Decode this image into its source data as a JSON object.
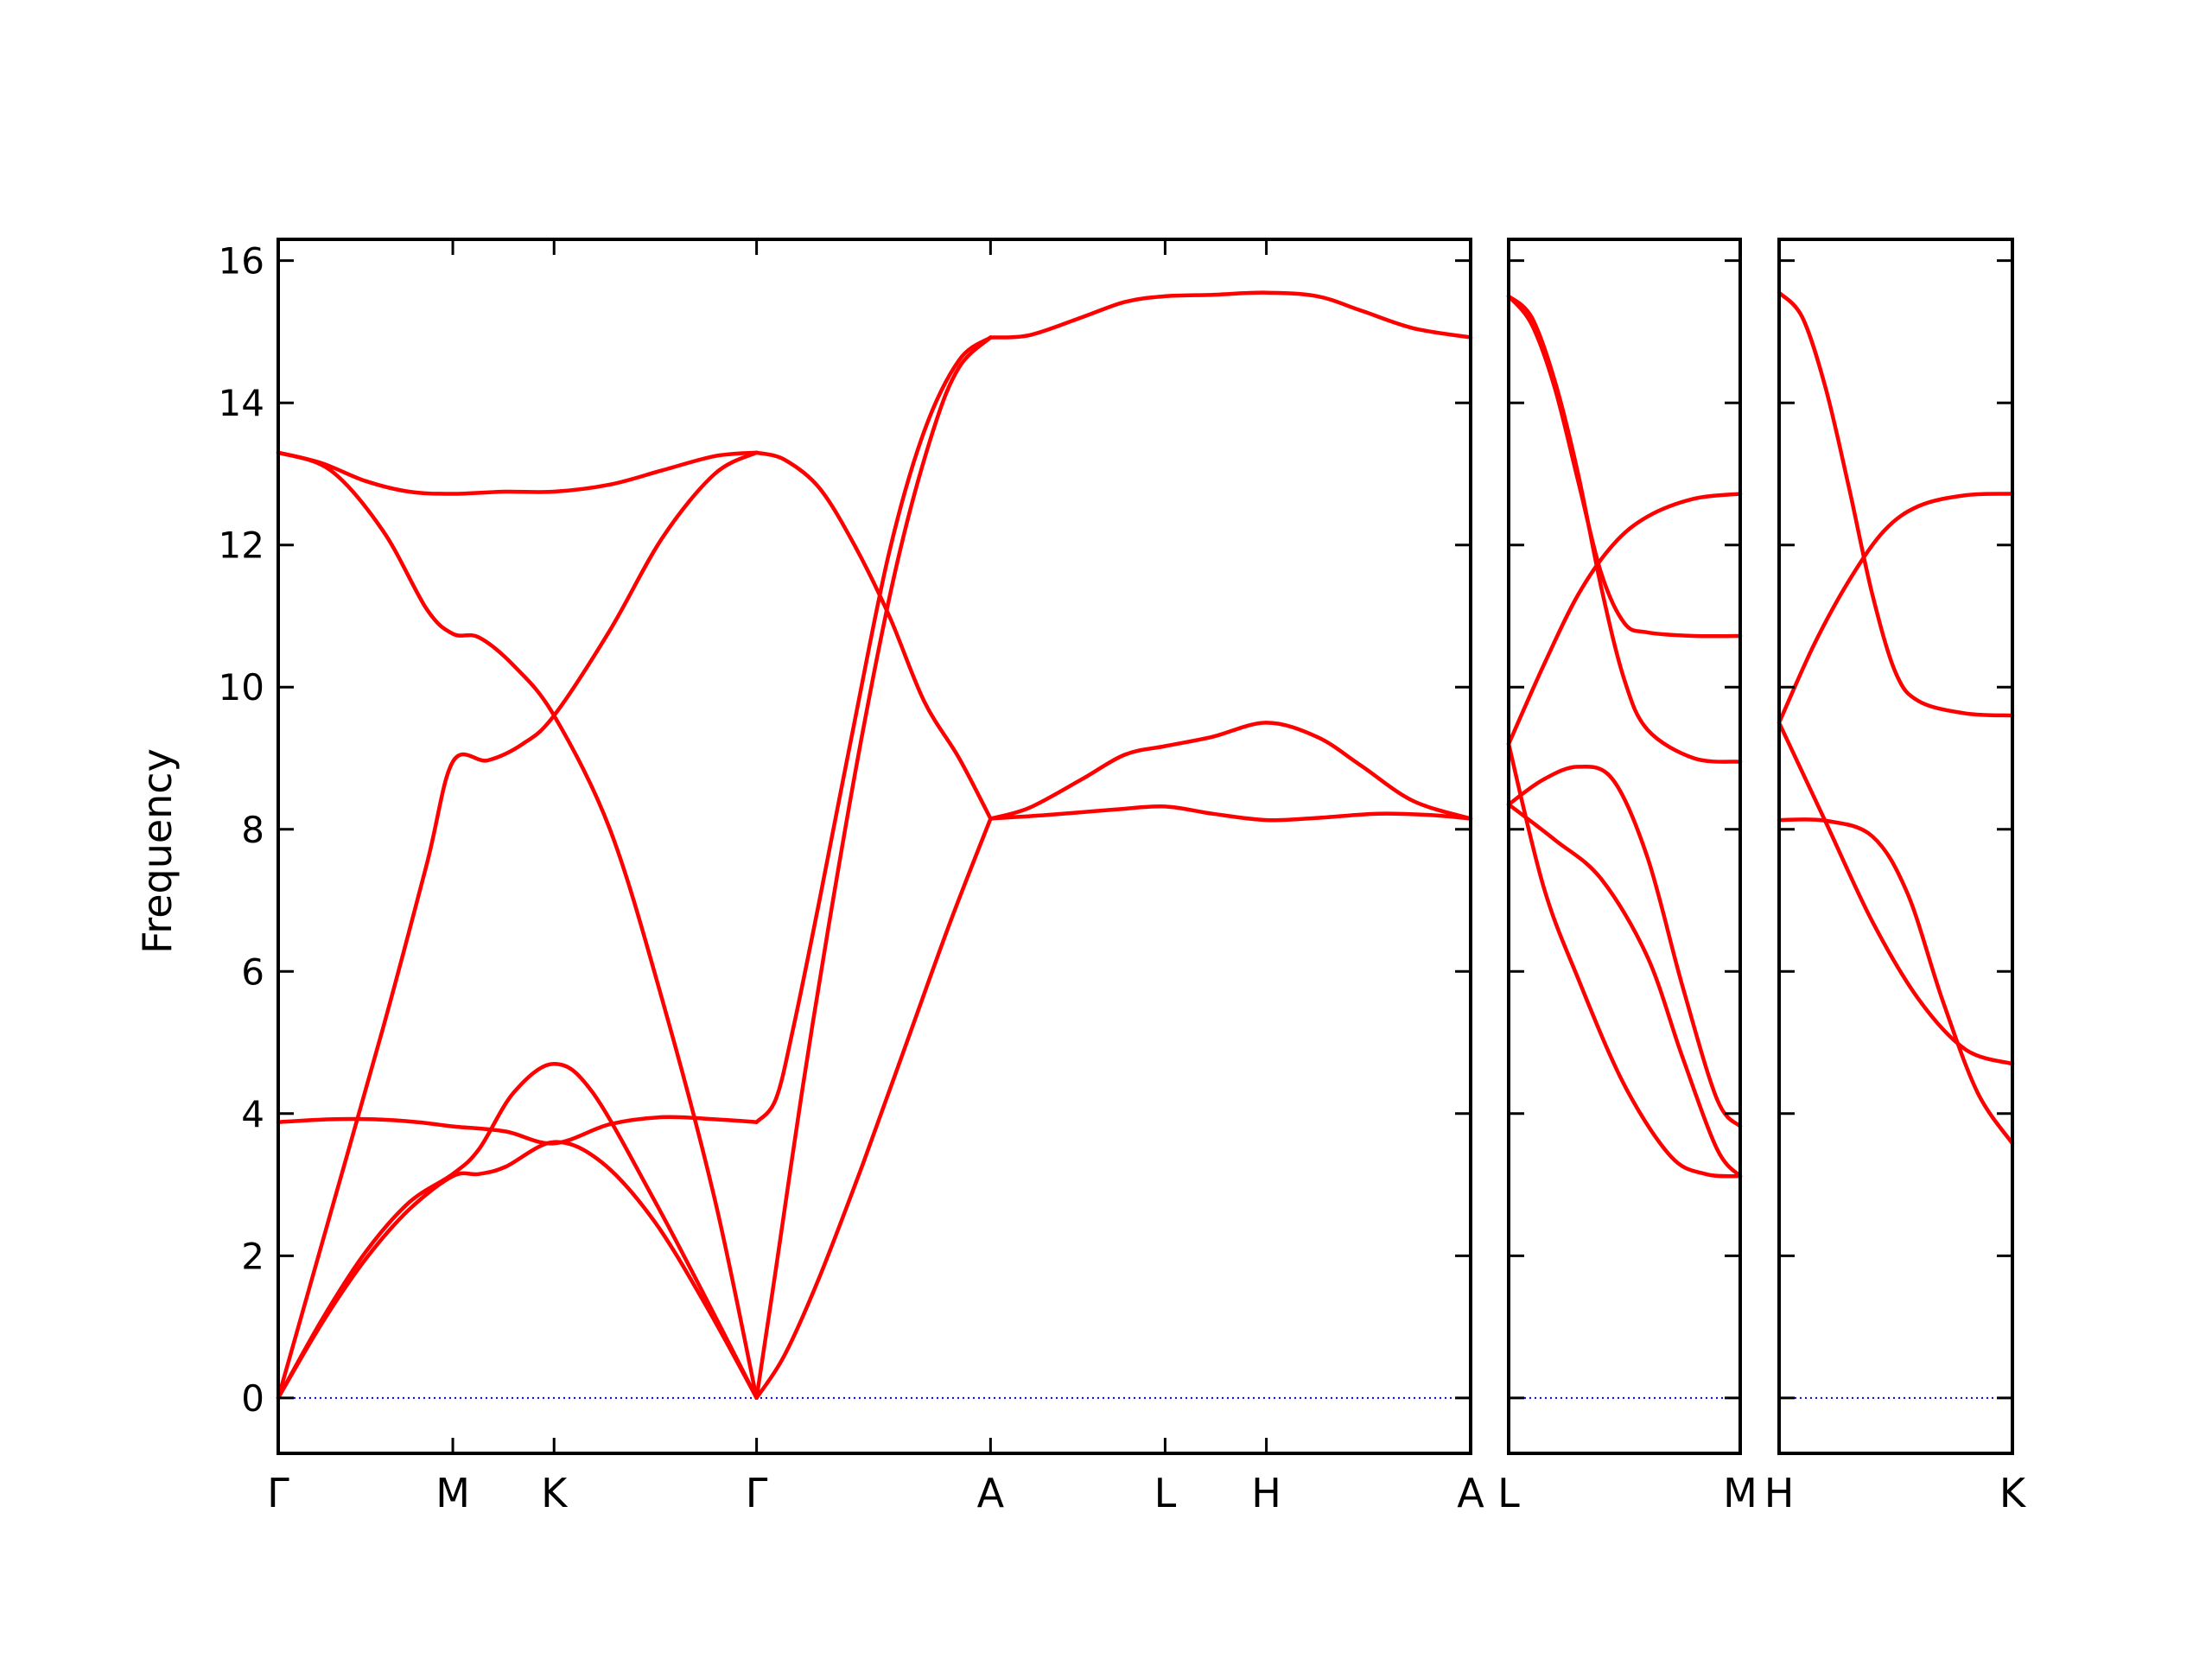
{
  "chart_data": {
    "type": "line",
    "ylabel": "Frequency",
    "ylim": [
      -0.78,
      16.3
    ],
    "yticks": [
      "0",
      "2",
      "4",
      "6",
      "8",
      "10",
      "12",
      "14",
      "16"
    ],
    "reference_line": {
      "y": 0,
      "color": "#0000ff",
      "style": "dotted"
    },
    "band_color": "#ff0000",
    "panels": [
      {
        "xlim": [
          0,
          6.83
        ],
        "ticks": [
          {
            "x": 0,
            "label": "Γ"
          },
          {
            "x": 1.0,
            "label": "M"
          },
          {
            "x": 1.58,
            "label": "K"
          },
          {
            "x": 2.74,
            "label": "Γ"
          },
          {
            "x": 4.08,
            "label": "A"
          },
          {
            "x": 5.08,
            "label": "L"
          },
          {
            "x": 5.66,
            "label": "H"
          },
          {
            "x": 6.83,
            "label": "A"
          }
        ],
        "bands": [
          {
            "points": [
              [
                0,
                0
              ],
              [
                0.25,
                1.05
              ],
              [
                0.5,
                1.95
              ],
              [
                0.75,
                2.65
              ],
              [
                1.0,
                3.12
              ],
              [
                1.15,
                3.15
              ],
              [
                1.3,
                3.25
              ],
              [
                1.58,
                3.6
              ],
              [
                1.85,
                3.32
              ],
              [
                2.15,
                2.5
              ],
              [
                2.45,
                1.3
              ],
              [
                2.74,
                0
              ]
            ]
          },
          {
            "points": [
              [
                0,
                0
              ],
              [
                0.25,
                1.1
              ],
              [
                0.5,
                2.05
              ],
              [
                0.75,
                2.75
              ],
              [
                1.0,
                3.15
              ],
              [
                1.15,
                3.5
              ],
              [
                1.35,
                4.3
              ],
              [
                1.58,
                4.7
              ],
              [
                1.8,
                4.3
              ],
              [
                2.15,
                2.8
              ],
              [
                2.45,
                1.4
              ],
              [
                2.74,
                0
              ]
            ]
          },
          {
            "points": [
              [
                0,
                0
              ],
              [
                0.3,
                2.6
              ],
              [
                0.6,
                5.2
              ],
              [
                0.85,
                7.5
              ],
              [
                1.0,
                8.95
              ],
              [
                1.2,
                8.97
              ],
              [
                1.4,
                9.2
              ],
              [
                1.58,
                9.6
              ],
              [
                1.9,
                10.8
              ],
              [
                2.2,
                12.1
              ],
              [
                2.5,
                13.0
              ],
              [
                2.74,
                13.3
              ]
            ]
          },
          {
            "points": [
              [
                0,
                13.3
              ],
              [
                0.25,
                13.15
              ],
              [
                0.5,
                12.9
              ],
              [
                0.75,
                12.75
              ],
              [
                1.0,
                12.72
              ],
              [
                1.3,
                12.75
              ],
              [
                1.58,
                12.75
              ],
              [
                1.9,
                12.85
              ],
              [
                2.2,
                13.05
              ],
              [
                2.5,
                13.25
              ],
              [
                2.74,
                13.3
              ]
            ]
          },
          {
            "points": [
              [
                0,
                13.3
              ],
              [
                0.3,
                13.05
              ],
              [
                0.6,
                12.2
              ],
              [
                0.85,
                11.1
              ],
              [
                1.0,
                10.75
              ],
              [
                1.15,
                10.7
              ],
              [
                1.35,
                10.3
              ],
              [
                1.58,
                9.6
              ],
              [
                1.9,
                8.0
              ],
              [
                2.2,
                5.6
              ],
              [
                2.5,
                2.8
              ],
              [
                2.74,
                0
              ]
            ]
          },
          {
            "points": [
              [
                0,
                3.88
              ],
              [
                0.3,
                3.92
              ],
              [
                0.55,
                3.92
              ],
              [
                0.8,
                3.88
              ],
              [
                1.0,
                3.82
              ],
              [
                1.3,
                3.75
              ],
              [
                1.58,
                3.58
              ],
              [
                1.9,
                3.85
              ],
              [
                2.2,
                3.95
              ],
              [
                2.5,
                3.92
              ],
              [
                2.74,
                3.88
              ]
            ]
          },
          {
            "points": [
              [
                2.74,
                0
              ],
              [
                2.9,
                0.6
              ],
              [
                3.1,
                1.7
              ],
              [
                3.35,
                3.3
              ],
              [
                3.6,
                5.0
              ],
              [
                3.85,
                6.7
              ],
              [
                4.08,
                8.15
              ]
            ]
          },
          {
            "points": [
              [
                2.74,
                3.88
              ],
              [
                2.85,
                4.2
              ],
              [
                2.95,
                5.2
              ],
              [
                3.1,
                7.0
              ],
              [
                3.3,
                9.5
              ],
              [
                3.5,
                11.9
              ],
              [
                3.7,
                13.6
              ],
              [
                3.9,
                14.6
              ],
              [
                4.08,
                14.92
              ]
            ]
          },
          {
            "points": [
              [
                2.74,
                0
              ],
              [
                2.85,
                1.8
              ],
              [
                3.0,
                4.3
              ],
              [
                3.15,
                6.6
              ],
              [
                3.35,
                9.4
              ],
              [
                3.55,
                11.8
              ],
              [
                3.75,
                13.6
              ],
              [
                3.9,
                14.5
              ],
              [
                4.08,
                14.92
              ]
            ]
          },
          {
            "points": [
              [
                2.74,
                13.3
              ],
              [
                2.9,
                13.2
              ],
              [
                3.1,
                12.8
              ],
              [
                3.3,
                12.0
              ],
              [
                3.5,
                11.0
              ],
              [
                3.7,
                9.8
              ],
              [
                3.9,
                9.0
              ],
              [
                4.08,
                8.15
              ]
            ]
          },
          {
            "points": [
              [
                4.08,
                14.92
              ],
              [
                4.3,
                14.95
              ],
              [
                4.6,
                15.2
              ],
              [
                4.85,
                15.42
              ],
              [
                5.08,
                15.5
              ],
              [
                5.35,
                15.52
              ],
              [
                5.66,
                15.55
              ],
              [
                5.95,
                15.5
              ],
              [
                6.2,
                15.3
              ],
              [
                6.5,
                15.05
              ],
              [
                6.83,
                14.92
              ]
            ]
          },
          {
            "points": [
              [
                4.08,
                8.15
              ],
              [
                4.3,
                8.3
              ],
              [
                4.6,
                8.7
              ],
              [
                4.85,
                9.05
              ],
              [
                5.08,
                9.17
              ],
              [
                5.35,
                9.3
              ],
              [
                5.66,
                9.5
              ],
              [
                5.95,
                9.3
              ],
              [
                6.2,
                8.9
              ],
              [
                6.5,
                8.4
              ],
              [
                6.83,
                8.15
              ]
            ]
          },
          {
            "points": [
              [
                4.08,
                8.15
              ],
              [
                4.4,
                8.2
              ],
              [
                4.8,
                8.28
              ],
              [
                5.08,
                8.32
              ],
              [
                5.35,
                8.22
              ],
              [
                5.66,
                8.13
              ],
              [
                5.95,
                8.16
              ],
              [
                6.3,
                8.22
              ],
              [
                6.6,
                8.2
              ],
              [
                6.83,
                8.15
              ]
            ]
          }
        ]
      },
      {
        "xlim": [
          0,
          1
        ],
        "ticks": [
          {
            "x": 0,
            "label": "L"
          },
          {
            "x": 1,
            "label": "M"
          }
        ],
        "bands": [
          {
            "points": [
              [
                0,
                15.5
              ],
              [
                0.1,
                15.1
              ],
              [
                0.2,
                14.2
              ],
              [
                0.3,
                12.9
              ],
              [
                0.4,
                11.6
              ],
              [
                0.5,
                10.9
              ],
              [
                0.6,
                10.77
              ],
              [
                0.8,
                10.72
              ],
              [
                1,
                10.72
              ]
            ]
          },
          {
            "points": [
              [
                0,
                15.5
              ],
              [
                0.1,
                15.2
              ],
              [
                0.2,
                14.3
              ],
              [
                0.3,
                13.0
              ],
              [
                0.4,
                11.4
              ],
              [
                0.5,
                10.1
              ],
              [
                0.6,
                9.4
              ],
              [
                0.8,
                9.0
              ],
              [
                1,
                8.95
              ]
            ]
          },
          {
            "points": [
              [
                0,
                9.2
              ],
              [
                0.15,
                10.3
              ],
              [
                0.3,
                11.3
              ],
              [
                0.45,
                12.0
              ],
              [
                0.6,
                12.4
              ],
              [
                0.8,
                12.65
              ],
              [
                1,
                12.72
              ]
            ]
          },
          {
            "points": [
              [
                0,
                8.35
              ],
              [
                0.15,
                8.7
              ],
              [
                0.3,
                8.88
              ],
              [
                0.45,
                8.7
              ],
              [
                0.6,
                7.6
              ],
              [
                0.75,
                5.8
              ],
              [
                0.9,
                4.2
              ],
              [
                1,
                3.82
              ]
            ]
          },
          {
            "points": [
              [
                0,
                9.2
              ],
              [
                0.15,
                7.2
              ],
              [
                0.3,
                5.9
              ],
              [
                0.5,
                4.4
              ],
              [
                0.7,
                3.4
              ],
              [
                0.85,
                3.15
              ],
              [
                1,
                3.12
              ]
            ]
          },
          {
            "points": [
              [
                0,
                8.35
              ],
              [
                0.2,
                7.85
              ],
              [
                0.4,
                7.3
              ],
              [
                0.6,
                6.2
              ],
              [
                0.75,
                4.8
              ],
              [
                0.9,
                3.5
              ],
              [
                1,
                3.12
              ]
            ]
          }
        ]
      },
      {
        "xlim": [
          0,
          1
        ],
        "ticks": [
          {
            "x": 0,
            "label": "H"
          },
          {
            "x": 1,
            "label": "K"
          }
        ],
        "bands": [
          {
            "points": [
              [
                0,
                15.55
              ],
              [
                0.1,
                15.2
              ],
              [
                0.2,
                14.2
              ],
              [
                0.3,
                12.8
              ],
              [
                0.4,
                11.3
              ],
              [
                0.5,
                10.2
              ],
              [
                0.6,
                9.8
              ],
              [
                0.8,
                9.63
              ],
              [
                1,
                9.6
              ]
            ]
          },
          {
            "points": [
              [
                0,
                9.5
              ],
              [
                0.15,
                10.6
              ],
              [
                0.3,
                11.5
              ],
              [
                0.45,
                12.2
              ],
              [
                0.6,
                12.55
              ],
              [
                0.8,
                12.7
              ],
              [
                1,
                12.72
              ]
            ]
          },
          {
            "points": [
              [
                0,
                9.5
              ],
              [
                0.2,
                8.1
              ],
              [
                0.4,
                6.7
              ],
              [
                0.6,
                5.6
              ],
              [
                0.8,
                4.9
              ],
              [
                1,
                4.7
              ]
            ]
          },
          {
            "points": [
              [
                0,
                8.13
              ],
              [
                0.2,
                8.12
              ],
              [
                0.4,
                7.9
              ],
              [
                0.55,
                7.1
              ],
              [
                0.7,
                5.6
              ],
              [
                0.85,
                4.3
              ],
              [
                1,
                3.58
              ]
            ]
          }
        ]
      }
    ]
  }
}
